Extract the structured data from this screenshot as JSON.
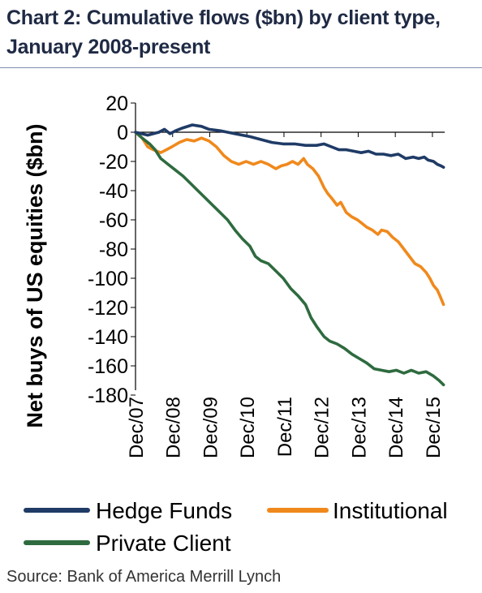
{
  "title_line1": "Chart 2: Cumulative flows ($bn) by client type,",
  "title_line2": "January 2008-present",
  "source": "Source: Bank of America Merrill Lynch",
  "chart_data": {
    "type": "line",
    "ylabel": "Net buys of US equities ($bn)",
    "xlabel": "",
    "ylim": [
      -180,
      20
    ],
    "yticks": [
      20,
      0,
      -20,
      -40,
      -60,
      -80,
      -100,
      -120,
      -140,
      -160,
      -180
    ],
    "xlim": [
      2007.92,
      2016.25
    ],
    "xtick_positions": [
      2007.92,
      2008.92,
      2009.92,
      2010.92,
      2011.92,
      2012.92,
      2013.92,
      2014.92,
      2015.92
    ],
    "xtick_labels": [
      "Dec/07",
      "Dec/08",
      "Dec/09",
      "Dec/10",
      "Dec/11",
      "Dec/12",
      "Dec/13",
      "Dec/14",
      "Dec/15"
    ],
    "grid": false,
    "legend_placement": "bottom",
    "series": [
      {
        "name": "Hedge Funds",
        "color": "#1f3b66",
        "points": [
          [
            2007.92,
            0
          ],
          [
            2008.25,
            -2
          ],
          [
            2008.55,
            0
          ],
          [
            2008.7,
            2
          ],
          [
            2008.85,
            -1
          ],
          [
            2009.0,
            1
          ],
          [
            2009.2,
            3
          ],
          [
            2009.45,
            5
          ],
          [
            2009.7,
            4
          ],
          [
            2009.9,
            2
          ],
          [
            2010.2,
            1
          ],
          [
            2010.4,
            0
          ],
          [
            2010.6,
            -1
          ],
          [
            2010.8,
            -2
          ],
          [
            2011.0,
            -3
          ],
          [
            2011.3,
            -5
          ],
          [
            2011.6,
            -7
          ],
          [
            2011.9,
            -8
          ],
          [
            2012.2,
            -8
          ],
          [
            2012.5,
            -9
          ],
          [
            2012.8,
            -9
          ],
          [
            2013.0,
            -8
          ],
          [
            2013.2,
            -10
          ],
          [
            2013.4,
            -12
          ],
          [
            2013.6,
            -12
          ],
          [
            2013.8,
            -13
          ],
          [
            2014.0,
            -14
          ],
          [
            2014.2,
            -13
          ],
          [
            2014.4,
            -15
          ],
          [
            2014.6,
            -15
          ],
          [
            2014.8,
            -16
          ],
          [
            2015.0,
            -15
          ],
          [
            2015.2,
            -18
          ],
          [
            2015.4,
            -17
          ],
          [
            2015.55,
            -18
          ],
          [
            2015.7,
            -17
          ],
          [
            2015.8,
            -19
          ],
          [
            2015.95,
            -20
          ],
          [
            2016.05,
            -22
          ],
          [
            2016.15,
            -23
          ],
          [
            2016.22,
            -24
          ]
        ]
      },
      {
        "name": "Institutional",
        "color": "#f0891c",
        "points": [
          [
            2007.92,
            0
          ],
          [
            2008.1,
            -4
          ],
          [
            2008.25,
            -10
          ],
          [
            2008.4,
            -12
          ],
          [
            2008.6,
            -14
          ],
          [
            2008.75,
            -12
          ],
          [
            2008.9,
            -10
          ],
          [
            2009.1,
            -7
          ],
          [
            2009.3,
            -5
          ],
          [
            2009.5,
            -6
          ],
          [
            2009.7,
            -4
          ],
          [
            2009.9,
            -6
          ],
          [
            2010.1,
            -10
          ],
          [
            2010.3,
            -16
          ],
          [
            2010.5,
            -20
          ],
          [
            2010.7,
            -22
          ],
          [
            2010.9,
            -20
          ],
          [
            2011.1,
            -22
          ],
          [
            2011.3,
            -20
          ],
          [
            2011.5,
            -22
          ],
          [
            2011.7,
            -25
          ],
          [
            2011.85,
            -23
          ],
          [
            2012.0,
            -22
          ],
          [
            2012.15,
            -20
          ],
          [
            2012.3,
            -22
          ],
          [
            2012.45,
            -18
          ],
          [
            2012.55,
            -22
          ],
          [
            2012.7,
            -25
          ],
          [
            2012.85,
            -30
          ],
          [
            2013.0,
            -38
          ],
          [
            2013.1,
            -42
          ],
          [
            2013.2,
            -45
          ],
          [
            2013.35,
            -50
          ],
          [
            2013.45,
            -48
          ],
          [
            2013.6,
            -55
          ],
          [
            2013.75,
            -58
          ],
          [
            2013.9,
            -60
          ],
          [
            2014.0,
            -62
          ],
          [
            2014.15,
            -65
          ],
          [
            2014.3,
            -67
          ],
          [
            2014.45,
            -70
          ],
          [
            2014.55,
            -67
          ],
          [
            2014.7,
            -68
          ],
          [
            2014.85,
            -72
          ],
          [
            2015.0,
            -75
          ],
          [
            2015.15,
            -80
          ],
          [
            2015.3,
            -85
          ],
          [
            2015.45,
            -90
          ],
          [
            2015.6,
            -92
          ],
          [
            2015.75,
            -96
          ],
          [
            2015.85,
            -100
          ],
          [
            2015.95,
            -105
          ],
          [
            2016.05,
            -108
          ],
          [
            2016.12,
            -112
          ],
          [
            2016.22,
            -118
          ]
        ]
      },
      {
        "name": "Private Client",
        "color": "#2e6b3f",
        "points": [
          [
            2007.92,
            0
          ],
          [
            2008.1,
            -4
          ],
          [
            2008.3,
            -8
          ],
          [
            2008.45,
            -12
          ],
          [
            2008.6,
            -18
          ],
          [
            2008.8,
            -22
          ],
          [
            2009.0,
            -26
          ],
          [
            2009.2,
            -30
          ],
          [
            2009.4,
            -35
          ],
          [
            2009.6,
            -40
          ],
          [
            2009.8,
            -45
          ],
          [
            2010.0,
            -50
          ],
          [
            2010.2,
            -55
          ],
          [
            2010.4,
            -60
          ],
          [
            2010.6,
            -67
          ],
          [
            2010.8,
            -73
          ],
          [
            2011.0,
            -78
          ],
          [
            2011.15,
            -85
          ],
          [
            2011.3,
            -88
          ],
          [
            2011.5,
            -90
          ],
          [
            2011.7,
            -95
          ],
          [
            2011.9,
            -100
          ],
          [
            2012.1,
            -107
          ],
          [
            2012.3,
            -112
          ],
          [
            2012.5,
            -118
          ],
          [
            2012.65,
            -127
          ],
          [
            2012.8,
            -133
          ],
          [
            2013.0,
            -140
          ],
          [
            2013.15,
            -143
          ],
          [
            2013.35,
            -145
          ],
          [
            2013.55,
            -148
          ],
          [
            2013.75,
            -152
          ],
          [
            2013.95,
            -155
          ],
          [
            2014.15,
            -158
          ],
          [
            2014.35,
            -162
          ],
          [
            2014.55,
            -163
          ],
          [
            2014.75,
            -164
          ],
          [
            2014.95,
            -163
          ],
          [
            2015.15,
            -165
          ],
          [
            2015.35,
            -163
          ],
          [
            2015.55,
            -165
          ],
          [
            2015.75,
            -164
          ],
          [
            2015.95,
            -167
          ],
          [
            2016.1,
            -170
          ],
          [
            2016.22,
            -173
          ]
        ]
      }
    ]
  }
}
